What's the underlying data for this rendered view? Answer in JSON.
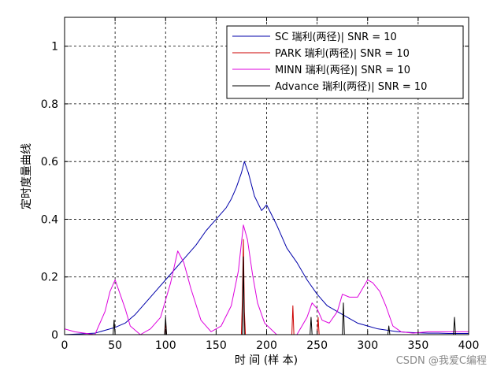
{
  "chart_data": {
    "type": "line",
    "xlabel": "时 间 (样 本)",
    "ylabel": "定时度量曲线",
    "xlim": [
      0,
      400
    ],
    "ylim": [
      0,
      1.1
    ],
    "xticks": [
      0,
      50,
      100,
      150,
      200,
      250,
      300,
      350,
      400
    ],
    "yticks": [
      0,
      0.2,
      0.4,
      0.6,
      0.8,
      1
    ],
    "ytick_labels": [
      "0",
      "0.2",
      "0.4",
      "0.6",
      "0.8",
      "1"
    ],
    "grid": true,
    "legend_position": "top-right",
    "series": [
      {
        "name": "SC 瑞利(两径)| SNR = 10",
        "color": "#0000aa",
        "x": [
          0,
          30,
          40,
          50,
          60,
          70,
          80,
          90,
          100,
          110,
          120,
          130,
          140,
          150,
          160,
          165,
          170,
          175,
          178,
          182,
          188,
          195,
          200,
          210,
          220,
          230,
          240,
          250,
          260,
          270,
          280,
          290,
          300,
          310,
          320,
          330,
          340,
          350,
          360,
          370,
          380,
          390,
          400
        ],
        "y": [
          0,
          0.005,
          0.015,
          0.025,
          0.04,
          0.07,
          0.11,
          0.15,
          0.19,
          0.23,
          0.27,
          0.31,
          0.36,
          0.4,
          0.44,
          0.47,
          0.51,
          0.56,
          0.6,
          0.56,
          0.48,
          0.43,
          0.45,
          0.38,
          0.3,
          0.25,
          0.19,
          0.14,
          0.1,
          0.08,
          0.06,
          0.04,
          0.03,
          0.02,
          0.015,
          0.01,
          0.008,
          0.006,
          0.005,
          0.005,
          0.004,
          0.004,
          0.004
        ]
      },
      {
        "name": "PARK 瑞利(两径)| SNR = 10",
        "color": "#cc0000",
        "x": [
          0,
          99,
          100,
          101,
          175,
          176,
          177,
          178,
          179,
          225,
          226,
          227,
          250,
          251,
          252,
          400
        ],
        "y": [
          0,
          0,
          0.04,
          0,
          0,
          0.12,
          0.33,
          0.08,
          0,
          0,
          0.1,
          0,
          0,
          0.06,
          0,
          0
        ]
      },
      {
        "name": "MINN 瑞利(两径)| SNR = 10",
        "color": "#dd00dd",
        "x": [
          0,
          5,
          10,
          30,
          40,
          45,
          50,
          55,
          60,
          65,
          75,
          85,
          95,
          100,
          105,
          112,
          118,
          125,
          135,
          145,
          155,
          165,
          172,
          177,
          181,
          186,
          191,
          198,
          210,
          230,
          240,
          245,
          250,
          255,
          262,
          270,
          275,
          282,
          290,
          300,
          305,
          312,
          318,
          325,
          333,
          345,
          360,
          380,
          400
        ],
        "y": [
          0.02,
          0.015,
          0.01,
          0.0,
          0.08,
          0.15,
          0.19,
          0.14,
          0.09,
          0.03,
          0.0,
          0.02,
          0.06,
          0.12,
          0.18,
          0.29,
          0.25,
          0.16,
          0.05,
          0.01,
          0.03,
          0.1,
          0.22,
          0.38,
          0.33,
          0.21,
          0.11,
          0.04,
          0.0,
          0.0,
          0.06,
          0.11,
          0.09,
          0.05,
          0.04,
          0.08,
          0.14,
          0.13,
          0.13,
          0.19,
          0.18,
          0.15,
          0.1,
          0.03,
          0.01,
          0.005,
          0.01,
          0.01,
          0.01
        ]
      },
      {
        "name": "Advance 瑞利(两径)| SNR = 10",
        "color": "#000000",
        "x": [
          0,
          48,
          49,
          50,
          99,
          100,
          101,
          176,
          177,
          178,
          243,
          244,
          245,
          275,
          276,
          277,
          320,
          321,
          322,
          385,
          386,
          387,
          400
        ],
        "y": [
          0,
          0,
          0.05,
          0,
          0,
          0.06,
          0,
          0,
          0.27,
          0,
          0,
          0.06,
          0,
          0,
          0.11,
          0,
          0,
          0.03,
          0,
          0,
          0.06,
          0,
          0
        ]
      }
    ]
  },
  "watermark": "CSDN @我爱C编程"
}
